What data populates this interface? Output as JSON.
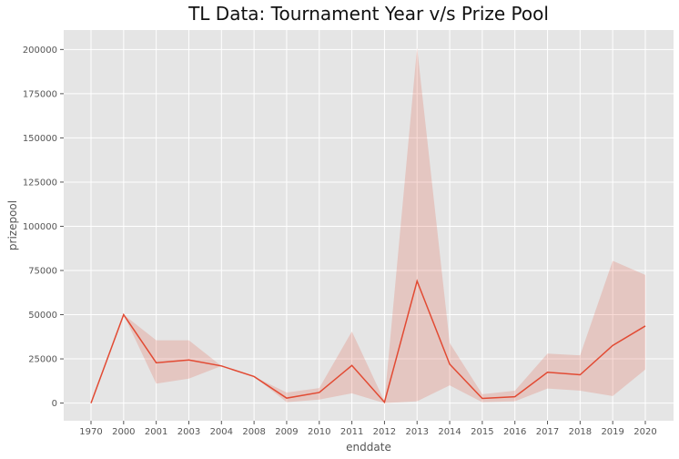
{
  "chart_data": {
    "type": "line",
    "title": "TL Data: Tournament Year v/s Prize Pool",
    "xlabel": "enddate",
    "ylabel": "prizepool",
    "categories": [
      "1970",
      "2000",
      "2001",
      "2003",
      "2004",
      "2008",
      "2009",
      "2010",
      "2011",
      "2012",
      "2013",
      "2014",
      "2015",
      "2016",
      "2017",
      "2018",
      "2019",
      "2020"
    ],
    "series": [
      {
        "name": "prizepool",
        "color": "#E24A33",
        "values": [
          0,
          50000,
          22800,
          24400,
          21000,
          15000,
          2800,
          6000,
          21300,
          500,
          69000,
          22000,
          2600,
          3600,
          17400,
          16000,
          32600,
          43600
        ],
        "ci_lower": [
          0,
          50000,
          11000,
          13800,
          21000,
          15000,
          500,
          2000,
          5500,
          0,
          1000,
          10000,
          500,
          1000,
          8200,
          7000,
          4000,
          19000
        ],
        "ci_upper": [
          0,
          50000,
          35500,
          35500,
          21000,
          15000,
          6000,
          8500,
          40500,
          1000,
          201000,
          34000,
          5000,
          7000,
          28000,
          27000,
          80500,
          72500
        ]
      }
    ],
    "yticks": [
      0,
      25000,
      50000,
      75000,
      100000,
      125000,
      150000,
      175000,
      200000
    ],
    "ylim": [
      -10000,
      211000
    ],
    "grid": true,
    "legend": "none"
  }
}
